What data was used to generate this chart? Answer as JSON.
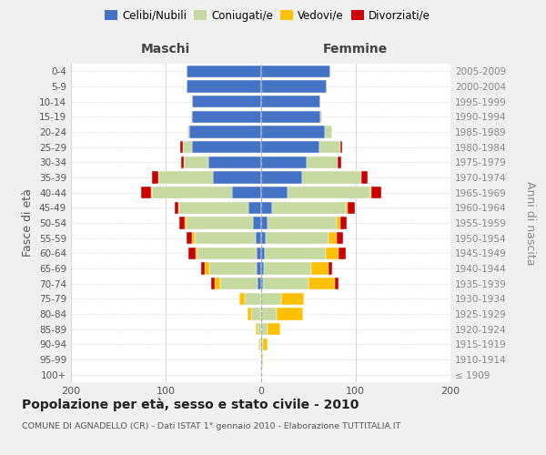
{
  "age_groups": [
    "100+",
    "95-99",
    "90-94",
    "85-89",
    "80-84",
    "75-79",
    "70-74",
    "65-69",
    "60-64",
    "55-59",
    "50-54",
    "45-49",
    "40-44",
    "35-39",
    "30-34",
    "25-29",
    "20-24",
    "15-19",
    "10-14",
    "5-9",
    "0-4"
  ],
  "birth_years": [
    "≤ 1909",
    "1910-1914",
    "1915-1919",
    "1920-1924",
    "1925-1929",
    "1930-1934",
    "1935-1939",
    "1940-1944",
    "1945-1949",
    "1950-1954",
    "1955-1959",
    "1960-1964",
    "1965-1969",
    "1970-1974",
    "1975-1979",
    "1980-1984",
    "1985-1989",
    "1990-1994",
    "1995-1999",
    "2000-2004",
    "2005-2009"
  ],
  "male_celibi": [
    0,
    0,
    0,
    0,
    0,
    0,
    3,
    4,
    4,
    5,
    8,
    13,
    30,
    50,
    55,
    72,
    75,
    72,
    72,
    78,
    78
  ],
  "male_coniugati": [
    0,
    0,
    1,
    3,
    10,
    17,
    40,
    50,
    63,
    65,
    70,
    73,
    85,
    58,
    26,
    10,
    2,
    1,
    0,
    0,
    0
  ],
  "male_vedovi": [
    0,
    0,
    1,
    2,
    4,
    6,
    5,
    5,
    2,
    2,
    2,
    1,
    1,
    0,
    0,
    0,
    0,
    0,
    0,
    0,
    0
  ],
  "male_divorziati": [
    0,
    0,
    0,
    0,
    0,
    0,
    4,
    4,
    7,
    6,
    6,
    4,
    10,
    7,
    3,
    3,
    0,
    0,
    0,
    0,
    0
  ],
  "female_nubili": [
    0,
    0,
    0,
    0,
    0,
    0,
    2,
    3,
    4,
    5,
    7,
    12,
    28,
    44,
    48,
    62,
    68,
    63,
    63,
    70,
    73
  ],
  "female_coniugate": [
    0,
    1,
    2,
    7,
    17,
    22,
    48,
    50,
    65,
    66,
    73,
    78,
    88,
    62,
    33,
    22,
    7,
    2,
    0,
    0,
    0
  ],
  "female_vedove": [
    0,
    1,
    5,
    14,
    28,
    24,
    28,
    18,
    13,
    9,
    4,
    2,
    1,
    0,
    0,
    0,
    0,
    0,
    0,
    0,
    0
  ],
  "female_divorziate": [
    0,
    0,
    0,
    0,
    0,
    0,
    4,
    4,
    8,
    7,
    7,
    7,
    10,
    7,
    4,
    2,
    0,
    0,
    0,
    0,
    0
  ],
  "colors": {
    "celibi_nubili": "#4472c4",
    "coniugati": "#c5d9a0",
    "vedovi": "#ffc000",
    "divorziati": "#cc0000"
  },
  "xlim": 200,
  "title": "Popolazione per età, sesso e stato civile - 2010",
  "subtitle": "COMUNE DI AGNADELLO (CR) - Dati ISTAT 1° gennaio 2010 - Elaborazione TUTTITALIA.IT",
  "ylabel_left": "Fasce di età",
  "ylabel_right": "Anni di nascita",
  "label_maschi": "Maschi",
  "label_femmine": "Femmine",
  "bg_color": "#f0f0f0",
  "plot_bg": "#ffffff",
  "grid_color": "#cccccc",
  "bar_height": 0.8,
  "legend_labels": [
    "Celibi/Nubili",
    "Coniugati/e",
    "Vedovi/e",
    "Divorziati/e"
  ]
}
